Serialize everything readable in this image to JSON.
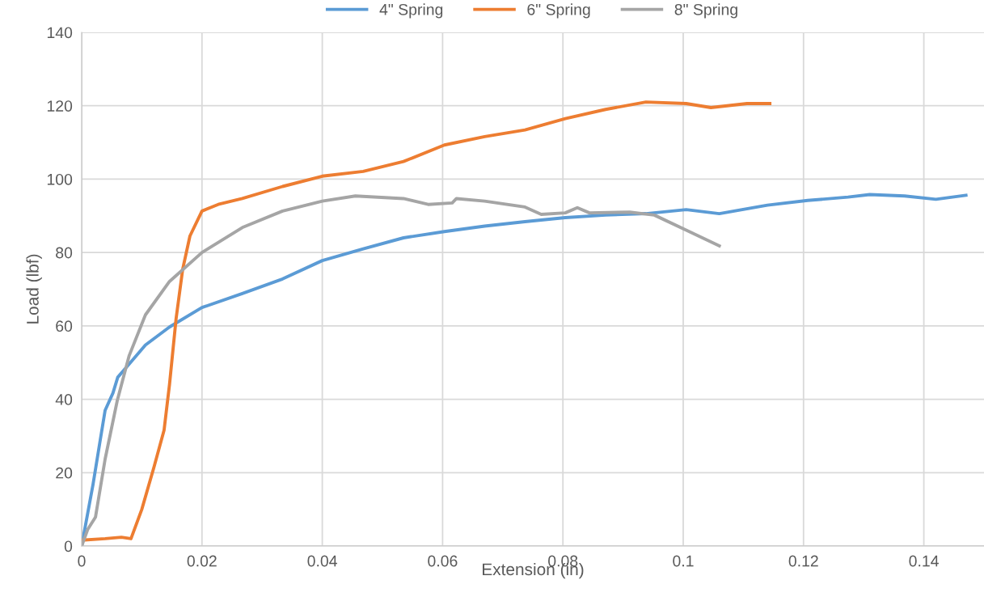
{
  "chart_data": {
    "type": "line",
    "xlabel": "Extension (in)",
    "ylabel": "Load (lbf)",
    "xlim": [
      0,
      0.15
    ],
    "xticks": [
      0,
      0.02,
      0.04,
      0.06,
      0.08,
      0.1,
      0.12,
      0.14
    ],
    "ylim": [
      0,
      140
    ],
    "yticks": [
      0,
      20,
      40,
      60,
      80,
      100,
      120,
      140
    ],
    "grid": true,
    "legend": "top",
    "marker": "none",
    "line_style": "solid",
    "series": [
      {
        "name": "4\" Spring",
        "color": "#5b9bd5",
        "x": [
          0,
          0.0019,
          0.003,
          0.0039,
          0.0052,
          0.006,
          0.0079,
          0.0106,
          0.0146,
          0.02,
          0.0267,
          0.0334,
          0.04,
          0.0468,
          0.0535,
          0.0603,
          0.067,
          0.0737,
          0.0804,
          0.0871,
          0.0938,
          0.1005,
          0.106,
          0.114,
          0.1207,
          0.1274,
          0.131,
          0.1368,
          0.142,
          0.147
        ],
        "values": [
          0,
          16.9,
          28,
          37,
          41.7,
          46,
          49.6,
          54.8,
          59.7,
          65,
          68.8,
          72.8,
          77.8,
          81,
          84,
          85.7,
          87.2,
          88.4,
          89.5,
          90.2,
          90.6,
          91.7,
          90.6,
          92.9,
          94.2,
          95.1,
          95.8,
          95.4,
          94.5,
          95.6
        ]
      },
      {
        "name": "6\" Spring",
        "color": "#ed7d31",
        "x": [
          0,
          0.0039,
          0.0066,
          0.0082,
          0.01,
          0.012,
          0.0137,
          0.0146,
          0.0157,
          0.0168,
          0.018,
          0.02,
          0.0227,
          0.0267,
          0.0334,
          0.04,
          0.0468,
          0.0535,
          0.0603,
          0.067,
          0.0737,
          0.0804,
          0.0871,
          0.0938,
          0.1005,
          0.1046,
          0.1106,
          0.1144
        ],
        "values": [
          1.6,
          2.0,
          2.4,
          2.0,
          10,
          21.4,
          31.6,
          44,
          62,
          75.5,
          84.5,
          91.3,
          93.1,
          94.7,
          98,
          100.8,
          102.1,
          104.8,
          109.3,
          111.6,
          113.4,
          116.5,
          119,
          121,
          120.6,
          119.5,
          120.6,
          120.6
        ]
      },
      {
        "name": "8\" Spring",
        "color": "#a5a5a5",
        "x": [
          0,
          0.001,
          0.0023,
          0.0039,
          0.0059,
          0.0079,
          0.0106,
          0.0146,
          0.02,
          0.0267,
          0.0334,
          0.04,
          0.0455,
          0.0535,
          0.0576,
          0.0616,
          0.0623,
          0.067,
          0.0737,
          0.0764,
          0.0804,
          0.0824,
          0.0844,
          0.0911,
          0.0952,
          0.1005,
          0.106
        ],
        "values": [
          0,
          4.5,
          7.9,
          23.7,
          39.5,
          51.9,
          63,
          72.1,
          80,
          86.8,
          91.3,
          94,
          95.4,
          94.7,
          93.1,
          93.5,
          94.7,
          94,
          92.4,
          90.4,
          90.8,
          92.2,
          90.8,
          91,
          90.2,
          86.1,
          81.8
        ]
      }
    ]
  }
}
